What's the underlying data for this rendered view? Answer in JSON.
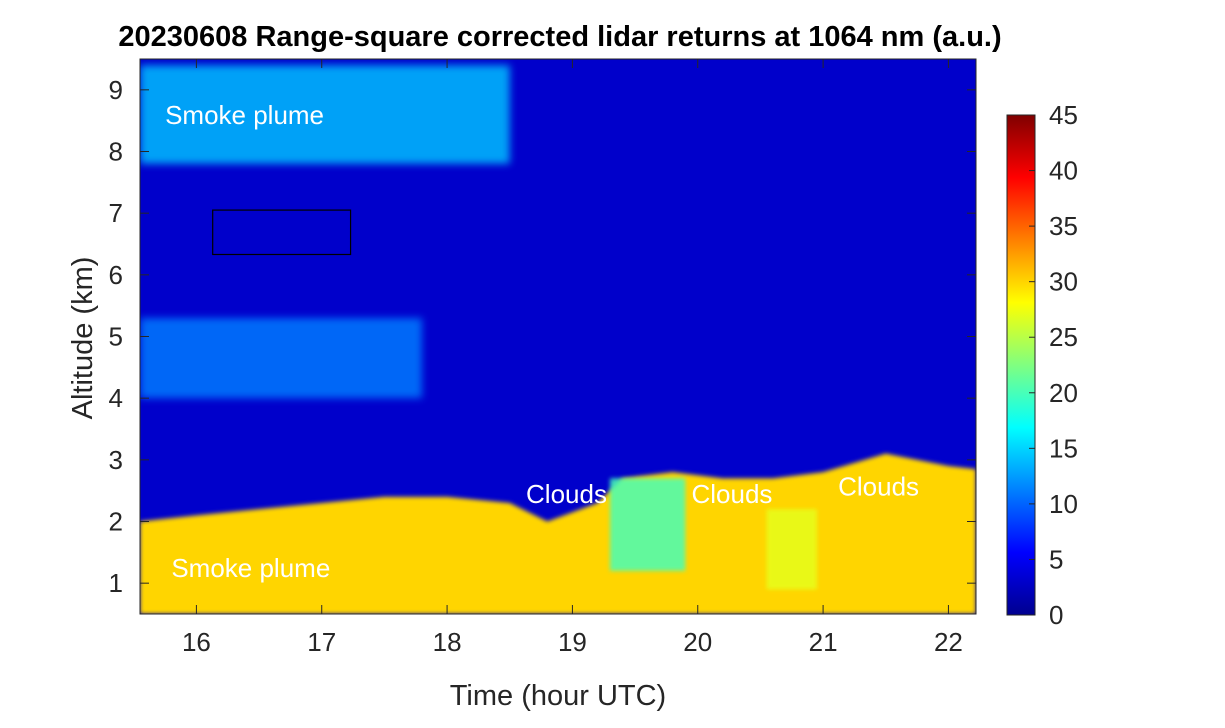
{
  "chart_data": {
    "type": "heatmap",
    "title": "20230608  Range-square corrected lidar returns at 1064 nm (a.u.)",
    "xlabel": "Time (hour UTC)",
    "ylabel": "Altitude (km)",
    "xlim": [
      15.55,
      22.22
    ],
    "ylim": [
      0.5,
      9.5
    ],
    "xticks": [
      "16",
      "17",
      "18",
      "19",
      "20",
      "21",
      "22"
    ],
    "yticks": [
      "1",
      "2",
      "3",
      "4",
      "5",
      "6",
      "7",
      "8",
      "9"
    ],
    "colorbar": {
      "colormap": "jet",
      "range": [
        0,
        45
      ],
      "ticks": [
        "0",
        "5",
        "10",
        "15",
        "20",
        "25",
        "30",
        "35",
        "40",
        "45"
      ],
      "colors": [
        "#00008f",
        "#0000ff",
        "#0080ff",
        "#00ffff",
        "#80ff80",
        "#ffff00",
        "#ff8000",
        "#ff0000",
        "#800000"
      ]
    },
    "annotations": [
      {
        "text": "Smoke plume",
        "x": 15.75,
        "y": 8.45
      },
      {
        "text": "Smoke plume",
        "x": 15.8,
        "y": 1.1
      },
      {
        "text": "Clouds",
        "x": 18.63,
        "y": 2.3
      },
      {
        "text": "Clouds",
        "x": 19.95,
        "y": 2.3
      },
      {
        "text": "Clouds",
        "x": 21.12,
        "y": 2.42
      }
    ],
    "highlight_box": {
      "x": [
        16.13,
        17.23
      ],
      "y": [
        6.33,
        7.05
      ]
    },
    "layers": {
      "background_value": 3,
      "smoke_upper": {
        "x": [
          15.55,
          18.5
        ],
        "y": [
          7.8,
          9.4
        ],
        "value": 14
      },
      "smoke_mid": {
        "x": [
          15.55,
          17.8
        ],
        "y": [
          4.0,
          5.3
        ],
        "value": 11
      },
      "boundary_layer": {
        "x": [
          15.55,
          16.0,
          16.5,
          17.0,
          17.5,
          18.0,
          18.5,
          18.8,
          19.2,
          19.4,
          19.8,
          20.2,
          20.6,
          21.0,
          21.5,
          22.0,
          22.22
        ],
        "top": [
          2.0,
          2.1,
          2.2,
          2.3,
          2.4,
          2.4,
          2.3,
          2.0,
          2.3,
          2.7,
          2.8,
          2.7,
          2.7,
          2.8,
          3.1,
          2.9,
          2.85
        ],
        "value": 30
      },
      "cloud_regions": [
        {
          "x": [
            19.3,
            19.9
          ],
          "y": [
            1.2,
            2.7
          ],
          "value": 20
        },
        {
          "x": [
            20.55,
            20.95
          ],
          "y": [
            0.9,
            2.2
          ],
          "value": 27
        }
      ]
    }
  },
  "colors": {
    "axis": "#262626",
    "text_overlay": "#ffffff"
  }
}
